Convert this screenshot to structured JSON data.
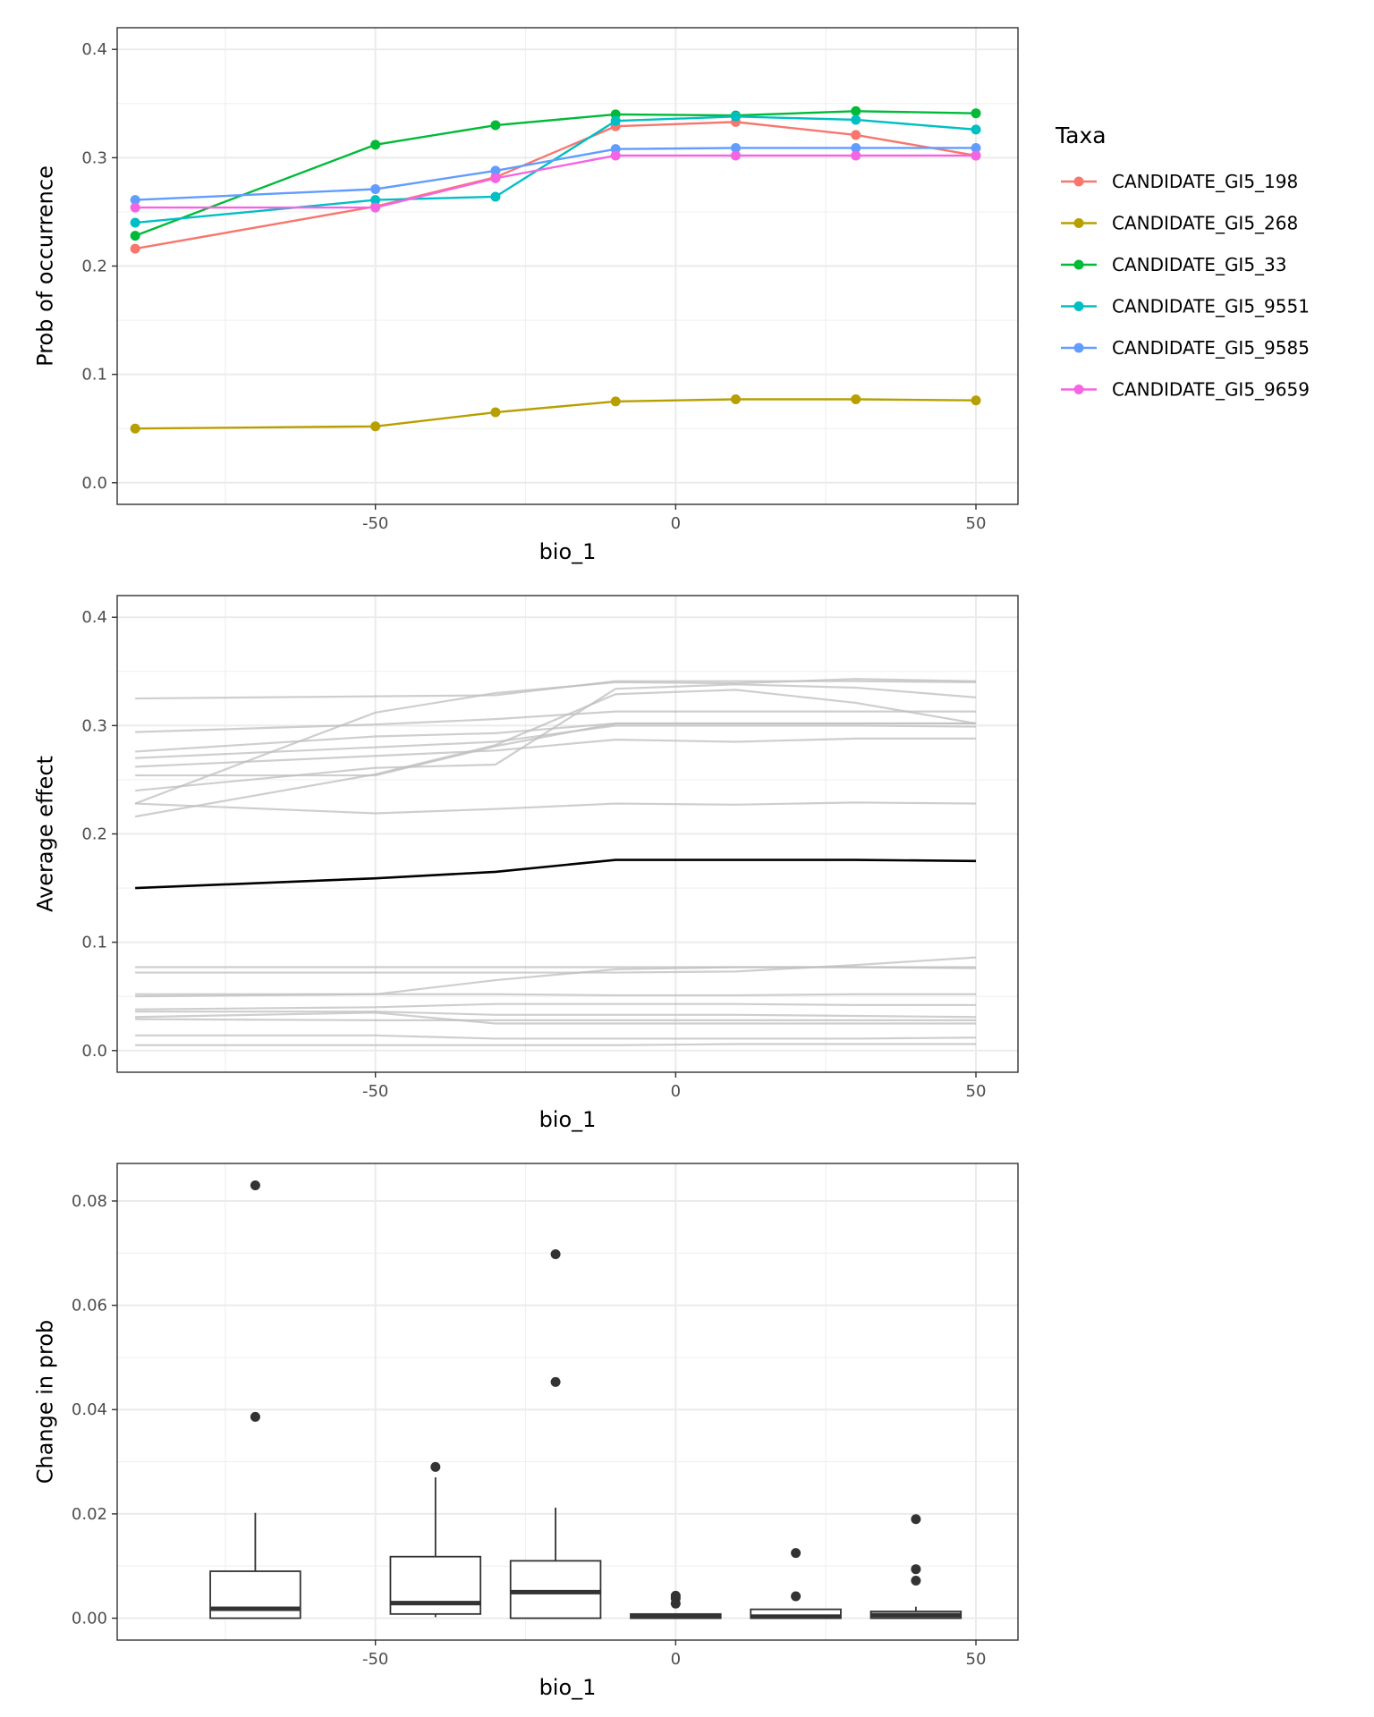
{
  "chart_data": [
    {
      "type": "line",
      "xlabel": "bio_1",
      "ylabel": "Prob of occurrence",
      "xlim": [
        -93,
        57
      ],
      "ylim": [
        -0.02,
        0.42
      ],
      "x_ticks": [
        -50,
        0,
        50
      ],
      "x_tick_labels": [
        "-50",
        "0",
        "50"
      ],
      "y_ticks": [
        0.0,
        0.1,
        0.2,
        0.3,
        0.4
      ],
      "y_tick_labels": [
        "0.0",
        "0.1",
        "0.2",
        "0.3",
        "0.4"
      ],
      "grid": true,
      "markers": true,
      "legend": {
        "title": "Taxa",
        "placement": "right"
      },
      "x": [
        -90,
        -50,
        -30,
        -10,
        10,
        30,
        50
      ],
      "series": [
        {
          "name": "CANDIDATE_GI5_198",
          "color": "#F8766D",
          "values": [
            0.216,
            0.255,
            0.282,
            0.329,
            0.333,
            0.321,
            0.302
          ]
        },
        {
          "name": "CANDIDATE_GI5_268",
          "color": "#B79F00",
          "values": [
            0.05,
            0.052,
            0.065,
            0.075,
            0.077,
            0.077,
            0.076
          ]
        },
        {
          "name": "CANDIDATE_GI5_33",
          "color": "#00BA38",
          "values": [
            0.228,
            0.312,
            0.33,
            0.34,
            0.339,
            0.343,
            0.341
          ]
        },
        {
          "name": "CANDIDATE_GI5_9551",
          "color": "#00BFC4",
          "values": [
            0.24,
            0.261,
            0.264,
            0.334,
            0.338,
            0.335,
            0.326
          ]
        },
        {
          "name": "CANDIDATE_GI5_9585",
          "color": "#619CFF",
          "values": [
            0.261,
            0.271,
            0.288,
            0.308,
            0.309,
            0.309,
            0.309
          ]
        },
        {
          "name": "CANDIDATE_GI5_9659",
          "color": "#F564E3",
          "values": [
            0.254,
            0.254,
            0.281,
            0.302,
            0.302,
            0.302,
            0.302
          ]
        }
      ]
    },
    {
      "type": "line",
      "xlabel": "bio_1",
      "ylabel": "Average effect",
      "xlim": [
        -93,
        57
      ],
      "ylim": [
        -0.02,
        0.42
      ],
      "x_ticks": [
        -50,
        0,
        50
      ],
      "x_tick_labels": [
        "-50",
        "0",
        "50"
      ],
      "y_ticks": [
        0.0,
        0.1,
        0.2,
        0.3,
        0.4
      ],
      "y_tick_labels": [
        "0.0",
        "0.1",
        "0.2",
        "0.3",
        "0.4"
      ],
      "grid": true,
      "x": [
        -90,
        -50,
        -30,
        -10,
        10,
        30,
        50
      ],
      "background_color": "#bdbdbd",
      "mean_color": "#000000",
      "background_series": [
        {
          "values": [
            0.325,
            0.327,
            0.328,
            0.341,
            0.341,
            0.341,
            0.34
          ]
        },
        {
          "values": [
            0.294,
            0.301,
            0.306,
            0.313,
            0.313,
            0.313,
            0.313
          ]
        },
        {
          "values": [
            0.276,
            0.29,
            0.293,
            0.302,
            0.302,
            0.302,
            0.302
          ]
        },
        {
          "values": [
            0.27,
            0.28,
            0.285,
            0.3,
            0.3,
            0.3,
            0.299
          ]
        },
        {
          "values": [
            0.262,
            0.272,
            0.277,
            0.287,
            0.285,
            0.288,
            0.288
          ]
        },
        {
          "values": [
            0.254,
            0.254,
            0.281,
            0.302,
            0.302,
            0.302,
            0.302
          ]
        },
        {
          "values": [
            0.216,
            0.255,
            0.282,
            0.329,
            0.333,
            0.321,
            0.302
          ]
        },
        {
          "values": [
            0.228,
            0.312,
            0.33,
            0.34,
            0.339,
            0.343,
            0.341
          ]
        },
        {
          "values": [
            0.24,
            0.261,
            0.264,
            0.334,
            0.338,
            0.335,
            0.326
          ]
        },
        {
          "values": [
            0.228,
            0.219,
            0.223,
            0.228,
            0.227,
            0.229,
            0.228
          ]
        },
        {
          "values": [
            0.077,
            0.077,
            0.077,
            0.077,
            0.077,
            0.077,
            0.077
          ]
        },
        {
          "values": [
            0.05,
            0.052,
            0.065,
            0.075,
            0.077,
            0.077,
            0.076
          ]
        },
        {
          "values": [
            0.052,
            0.052,
            0.052,
            0.051,
            0.051,
            0.052,
            0.052
          ]
        },
        {
          "values": [
            0.072,
            0.072,
            0.072,
            0.072,
            0.073,
            0.079,
            0.086
          ]
        },
        {
          "values": [
            0.038,
            0.04,
            0.043,
            0.043,
            0.043,
            0.042,
            0.042
          ]
        },
        {
          "values": [
            0.036,
            0.036,
            0.033,
            0.033,
            0.033,
            0.032,
            0.031
          ]
        },
        {
          "values": [
            0.031,
            0.035,
            0.025,
            0.025,
            0.025,
            0.025,
            0.025
          ]
        },
        {
          "values": [
            0.029,
            0.028,
            0.028,
            0.028,
            0.028,
            0.028,
            0.028
          ]
        },
        {
          "values": [
            0.014,
            0.014,
            0.011,
            0.011,
            0.011,
            0.011,
            0.012
          ]
        },
        {
          "values": [
            0.005,
            0.005,
            0.005,
            0.005,
            0.006,
            0.006,
            0.006
          ]
        }
      ],
      "mean_series": {
        "values": [
          0.15,
          0.159,
          0.165,
          0.176,
          0.176,
          0.176,
          0.175
        ]
      }
    },
    {
      "type": "box",
      "xlabel": "bio_1",
      "ylabel": "Change in prob",
      "xlim": [
        -93,
        57
      ],
      "ylim": [
        -0.0042,
        0.0872
      ],
      "x_ticks": [
        -50,
        0,
        50
      ],
      "x_tick_labels": [
        "-50",
        "0",
        "50"
      ],
      "y_ticks": [
        0.0,
        0.02,
        0.04,
        0.06,
        0.08
      ],
      "y_tick_labels": [
        "0.00",
        "0.02",
        "0.04",
        "0.06",
        "0.08"
      ],
      "grid": true,
      "box_width": 15,
      "boxes": [
        {
          "x": -70,
          "q1": 0.0,
          "median": 0.0018,
          "q3": 0.009,
          "whisker_low": 0.0,
          "whisker_high": 0.0202,
          "outliers": [
            0.0386,
            0.083
          ]
        },
        {
          "x": -40,
          "q1": 0.0008,
          "median": 0.0029,
          "q3": 0.0118,
          "whisker_low": 0.0002,
          "whisker_high": 0.027,
          "outliers": [
            0.029
          ]
        },
        {
          "x": -20,
          "q1": 0.0,
          "median": 0.005,
          "q3": 0.011,
          "whisker_low": 0.0,
          "whisker_high": 0.0212,
          "outliers": [
            0.0453,
            0.0698
          ]
        },
        {
          "x": 0,
          "q1": 0.0,
          "median": 0.0003,
          "q3": 0.0008,
          "whisker_low": 0.0,
          "whisker_high": 0.0008,
          "outliers": [
            0.0028,
            0.0038,
            0.0043
          ]
        },
        {
          "x": 20,
          "q1": 0.0,
          "median": 0.0003,
          "q3": 0.0017,
          "whisker_low": 0.0,
          "whisker_high": 0.0017,
          "outliers": [
            0.0042,
            0.0125
          ]
        },
        {
          "x": 40,
          "q1": 0.0,
          "median": 0.0006,
          "q3": 0.0013,
          "whisker_low": 0.0,
          "whisker_high": 0.0022,
          "outliers": [
            0.0072,
            0.0094,
            0.019
          ]
        }
      ]
    }
  ]
}
